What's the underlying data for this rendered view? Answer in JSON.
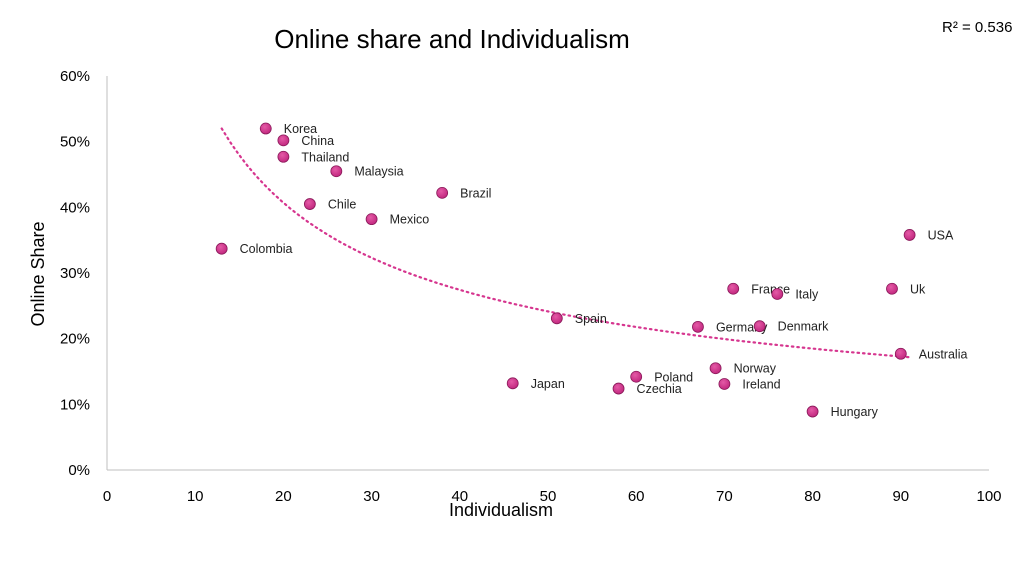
{
  "chart_data": {
    "type": "scatter",
    "title": "Online share and Individualism",
    "xlabel": "Individualism",
    "ylabel": "Online Share",
    "xlim": [
      0,
      100
    ],
    "ylim": [
      0,
      0.6
    ],
    "x_ticks": [
      0,
      10,
      20,
      30,
      40,
      50,
      60,
      70,
      80,
      90,
      100
    ],
    "y_ticks": [
      "0%",
      "10%",
      "20%",
      "30%",
      "40%",
      "50%",
      "60%"
    ],
    "grid": false,
    "legend": "none",
    "r_squared_label": "R² = 0.536",
    "trendline": {
      "type": "power",
      "style": "dotted",
      "x_range": [
        13,
        91
      ]
    },
    "marker_color": "#c2287f",
    "trend_color": "#d6368f",
    "points": [
      {
        "label": "Korea",
        "x": 18,
        "y": 0.52
      },
      {
        "label": "China",
        "x": 20,
        "y": 0.502
      },
      {
        "label": "Thailand",
        "x": 20,
        "y": 0.477
      },
      {
        "label": "Malaysia",
        "x": 26,
        "y": 0.455
      },
      {
        "label": "Brazil",
        "x": 38,
        "y": 0.422
      },
      {
        "label": "Chile",
        "x": 23,
        "y": 0.405
      },
      {
        "label": "Mexico",
        "x": 30,
        "y": 0.382
      },
      {
        "label": "Colombia",
        "x": 13,
        "y": 0.337
      },
      {
        "label": "USA",
        "x": 91,
        "y": 0.358
      },
      {
        "label": "France",
        "x": 71,
        "y": 0.276
      },
      {
        "label": "Italy",
        "x": 76,
        "y": 0.268
      },
      {
        "label": "Uk",
        "x": 89,
        "y": 0.276
      },
      {
        "label": "Spain",
        "x": 51,
        "y": 0.231
      },
      {
        "label": "Germany",
        "x": 67,
        "y": 0.218
      },
      {
        "label": "Denmark",
        "x": 74,
        "y": 0.219
      },
      {
        "label": "Australia",
        "x": 90,
        "y": 0.177
      },
      {
        "label": "Norway",
        "x": 69,
        "y": 0.155
      },
      {
        "label": "Poland",
        "x": 60,
        "y": 0.142
      },
      {
        "label": "Japan",
        "x": 46,
        "y": 0.132
      },
      {
        "label": "Ireland",
        "x": 70,
        "y": 0.131
      },
      {
        "label": "Czechia",
        "x": 58,
        "y": 0.124
      },
      {
        "label": "Hungary",
        "x": 80,
        "y": 0.089
      }
    ]
  }
}
